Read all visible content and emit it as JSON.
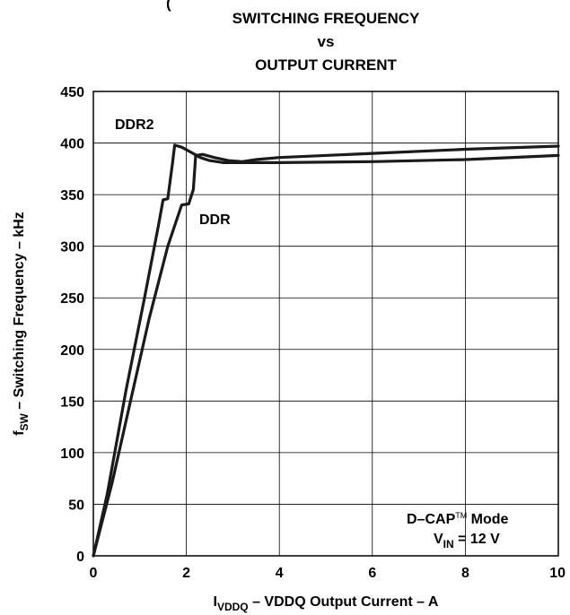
{
  "chart_data": {
    "type": "line",
    "title_lines": [
      "SWITCHING FREQUENCY",
      "vs",
      "OUTPUT CURRENT"
    ],
    "top_fragment": "(",
    "ylabel": {
      "main": "f",
      "sub": "SW",
      "rest": " – Switching Frequency – kHz"
    },
    "xlabel": {
      "main": "I",
      "sub": "VDDQ",
      "rest": " – VDDQ Output Current – A"
    },
    "xlim": [
      0,
      10
    ],
    "ylim": [
      0,
      450
    ],
    "x_ticks": [
      "0",
      "2",
      "4",
      "6",
      "8",
      "10"
    ],
    "y_ticks": [
      "0",
      "50",
      "100",
      "150",
      "200",
      "250",
      "300",
      "350",
      "400",
      "450"
    ],
    "grid": true,
    "series": [
      {
        "name": "DDR2",
        "points": [
          [
            0,
            0
          ],
          [
            0.3,
            60
          ],
          [
            0.7,
            160
          ],
          [
            1.1,
            250
          ],
          [
            1.4,
            320
          ],
          [
            1.5,
            345
          ],
          [
            1.6,
            346
          ],
          [
            1.7,
            380
          ],
          [
            1.75,
            398
          ],
          [
            1.9,
            396
          ],
          [
            2.1,
            391
          ],
          [
            2.3,
            386
          ],
          [
            2.5,
            383
          ],
          [
            2.8,
            381
          ],
          [
            3.0,
            381
          ],
          [
            3.3,
            381
          ],
          [
            4.0,
            381
          ],
          [
            6.0,
            382
          ],
          [
            8.0,
            384
          ],
          [
            10.0,
            388
          ]
        ]
      },
      {
        "name": "DDR",
        "points": [
          [
            0,
            0
          ],
          [
            0.4,
            70
          ],
          [
            0.8,
            150
          ],
          [
            1.2,
            230
          ],
          [
            1.6,
            300
          ],
          [
            1.9,
            340
          ],
          [
            2.05,
            341
          ],
          [
            2.15,
            355
          ],
          [
            2.2,
            388
          ],
          [
            2.35,
            389
          ],
          [
            2.6,
            386
          ],
          [
            2.9,
            383
          ],
          [
            3.2,
            382
          ],
          [
            3.5,
            384
          ],
          [
            4.0,
            386
          ],
          [
            6.0,
            390
          ],
          [
            8.0,
            394
          ],
          [
            10.0,
            397
          ]
        ]
      }
    ],
    "annotations": {
      "ddr2_label": "DDR2",
      "ddr_label": "DDR",
      "mode_prefix": "D–CAP",
      "mode_tm": "TM",
      "mode_suffix": "  Mode",
      "vin_main": "V",
      "vin_sub": "IN",
      "vin_rest": " = 12 V"
    },
    "colors": {
      "line": "#1a1a1a",
      "grid": "#000000"
    }
  }
}
